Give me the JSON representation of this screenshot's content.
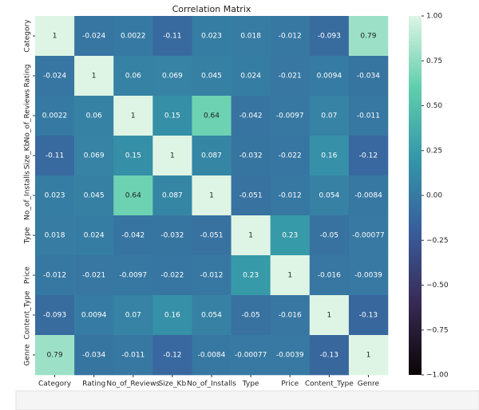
{
  "chart_data": {
    "type": "heatmap",
    "title": "Correlation Matrix",
    "categories": [
      "Category",
      "Rating",
      "No_of_Reviews",
      "Size_Kb",
      "No_of_Installs",
      "Type",
      "Price",
      "Content_Type",
      "Genre"
    ],
    "y_categories": [
      "Category",
      "Rating",
      "No_of_Reviews",
      "Size_Kb",
      "No_of_Installs",
      "Type",
      "Price",
      "Content_Type",
      "Genre"
    ],
    "values": [
      [
        1,
        -0.024,
        0.0022,
        -0.11,
        0.023,
        0.018,
        -0.012,
        -0.093,
        0.79
      ],
      [
        -0.024,
        1,
        0.06,
        0.069,
        0.045,
        0.024,
        -0.021,
        0.0094,
        -0.034
      ],
      [
        0.0022,
        0.06,
        1,
        0.15,
        0.64,
        -0.042,
        -0.0097,
        0.07,
        -0.011
      ],
      [
        -0.11,
        0.069,
        0.15,
        1,
        0.087,
        -0.032,
        -0.022,
        0.16,
        -0.12
      ],
      [
        0.023,
        0.045,
        0.64,
        0.087,
        1,
        -0.051,
        -0.012,
        0.054,
        -0.0084
      ],
      [
        0.018,
        0.024,
        -0.042,
        -0.032,
        -0.051,
        1,
        0.23,
        -0.05,
        -0.00077
      ],
      [
        -0.012,
        -0.021,
        -0.0097,
        -0.022,
        -0.012,
        0.23,
        1,
        -0.016,
        -0.0039
      ],
      [
        -0.093,
        0.0094,
        0.07,
        0.16,
        0.054,
        -0.05,
        -0.016,
        1,
        -0.13
      ],
      [
        0.79,
        -0.034,
        -0.011,
        -0.12,
        -0.0084,
        -0.00077,
        -0.0039,
        -0.13,
        1
      ]
    ],
    "colormap": [
      "#0b0405",
      "#382a54",
      "#395d9c",
      "#3496a9",
      "#60ceac",
      "#def5e5"
    ],
    "clim": [
      -1,
      1
    ],
    "cticks": [
      {
        "value": 1,
        "label": "1.00"
      },
      {
        "value": 0.75,
        "label": "0.75"
      },
      {
        "value": 0.5,
        "label": "0.50"
      },
      {
        "value": 0.25,
        "label": "0.25"
      },
      {
        "value": 0,
        "label": "0.00"
      },
      {
        "value": -0.25,
        "label": "−0.25"
      },
      {
        "value": -0.5,
        "label": "−0.50"
      },
      {
        "value": -0.75,
        "label": "−0.75"
      },
      {
        "value": -1,
        "label": "−1.00"
      }
    ]
  }
}
